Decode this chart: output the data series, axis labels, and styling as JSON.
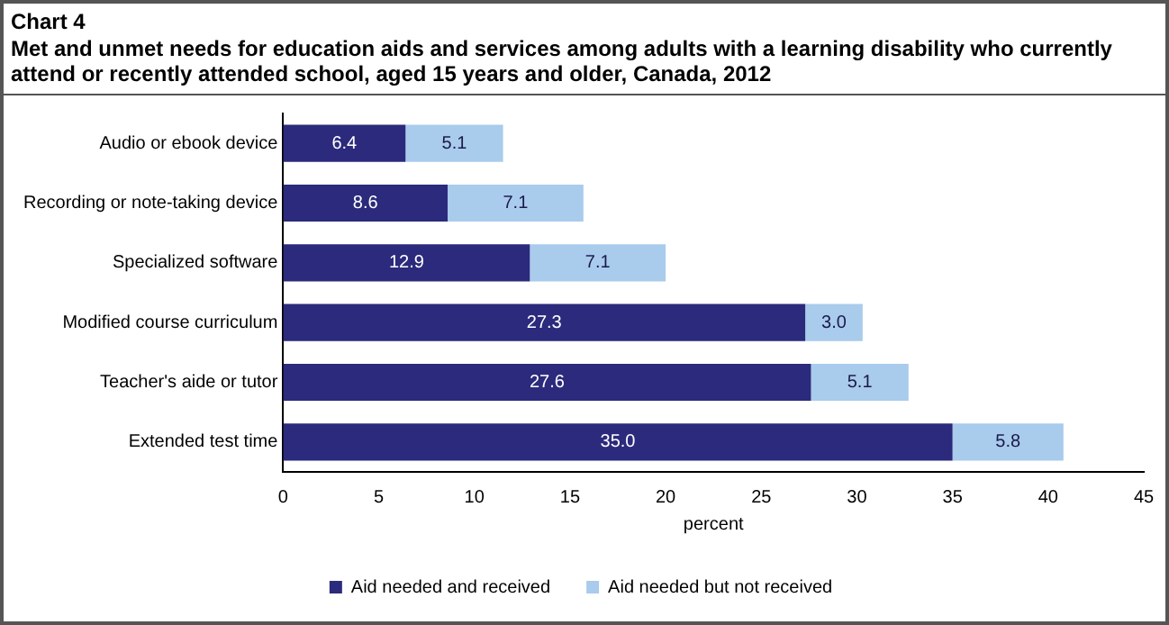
{
  "chart_data": {
    "type": "bar",
    "title": "Chart 4",
    "subtitle": "Met and unmet needs for education aids and services among adults with a learning disability who currently attend or recently attended school, aged 15 years and older, Canada, 2012",
    "xlabel": "percent",
    "orientation": "horizontal",
    "stacked": true,
    "grid": false,
    "legend": "bottom",
    "categories": [
      "Audio or ebook device",
      "Recording or note-taking device",
      "Specialized software",
      "Modified course curriculum",
      "Teacher's aide or tutor",
      "Extended test time"
    ],
    "series": [
      {
        "name": "Aid needed and received",
        "color": "#2b2a7c",
        "values": [
          6.4,
          8.6,
          12.9,
          27.3,
          27.6,
          35.0
        ],
        "value_labels": [
          "6.4",
          "8.6",
          "12.9",
          "27.3",
          "27.6",
          "35.0"
        ]
      },
      {
        "name": "Aid needed but not received",
        "color": "#a9cbec",
        "values": [
          5.1,
          7.1,
          7.1,
          3.0,
          5.1,
          5.8
        ],
        "value_labels": [
          "5.1",
          "7.1",
          "7.1",
          "3.0",
          "5.1",
          "5.8"
        ]
      }
    ],
    "xlim": [
      0,
      45
    ],
    "xticks": [
      0,
      5,
      10,
      15,
      20,
      25,
      30,
      35,
      40,
      45
    ]
  }
}
